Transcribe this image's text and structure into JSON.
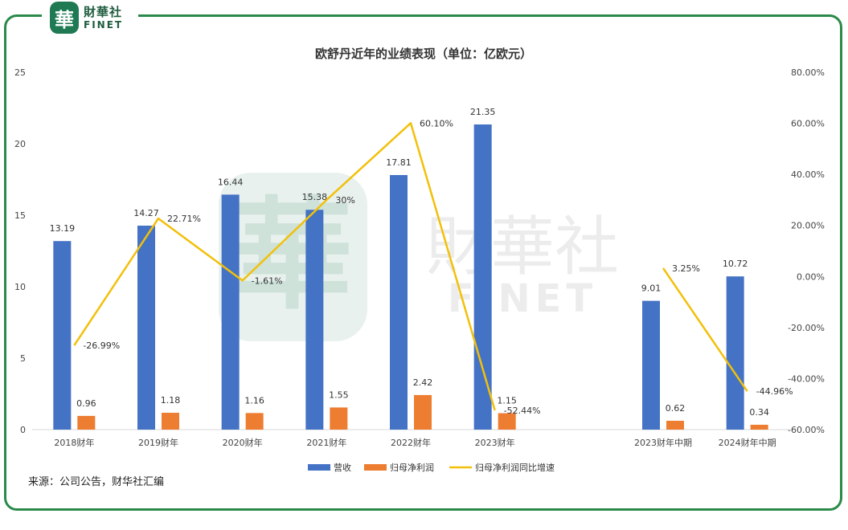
{
  "logo": {
    "badge_char": "華",
    "name_cn": "財華社",
    "name_en": "FINET"
  },
  "watermark": {
    "badge_char": "華",
    "name_cn": "財華社",
    "name_en": "FINET"
  },
  "source_text": "来源：公司公告，财华社汇编",
  "colors": {
    "revenue": "#4472C4",
    "profit": "#ED7D31",
    "growth": "#F2C00A",
    "frame": "#2a8a4a",
    "watermark": "#1f7a54"
  },
  "chart_data": {
    "type": "bar",
    "title": "欧舒丹近年的业绩表现（单位：亿欧元）",
    "categories": [
      "2018财年",
      "2019财年",
      "2020财年",
      "2021财年",
      "2022财年",
      "2023财年",
      "",
      "2023财年中期",
      "2024财年中期"
    ],
    "series": [
      {
        "name": "营收",
        "type": "bar",
        "axis": "left",
        "values": [
          13.19,
          14.27,
          16.44,
          15.38,
          17.81,
          21.35,
          null,
          9.01,
          10.72
        ],
        "labels": [
          "13.19",
          "14.27",
          "16.44",
          "15.38",
          "17.81",
          "21.35",
          "",
          "9.01",
          "10.72"
        ]
      },
      {
        "name": "归母净利润",
        "type": "bar",
        "axis": "left",
        "values": [
          0.96,
          1.18,
          1.16,
          1.55,
          2.42,
          1.15,
          null,
          0.62,
          0.34
        ],
        "labels": [
          "0.96",
          "1.18",
          "1.16",
          "1.55",
          "2.42",
          "1.15",
          "",
          "0.62",
          "0.34"
        ]
      },
      {
        "name": "归母净利润同比增速",
        "type": "line",
        "axis": "right",
        "values": [
          -26.99,
          22.71,
          -1.61,
          30,
          60.1,
          -52.44,
          null,
          3.25,
          -44.96
        ],
        "labels": [
          "-26.99%",
          "22.71%",
          "-1.61%",
          "30%",
          "60.10%",
          "-52.44%",
          "",
          "3.25%",
          "-44.96%"
        ]
      }
    ],
    "y_left": {
      "min": 0,
      "max": 25,
      "ticks": [
        "0",
        "5",
        "10",
        "15",
        "20",
        "25"
      ]
    },
    "y_right": {
      "min": -60,
      "max": 80,
      "ticks": [
        "-60.00%",
        "-40.00%",
        "-20.00%",
        "0.00%",
        "20.00%",
        "40.00%",
        "60.00%",
        "80.00%"
      ]
    },
    "grid": false,
    "legend_position": "bottom"
  }
}
